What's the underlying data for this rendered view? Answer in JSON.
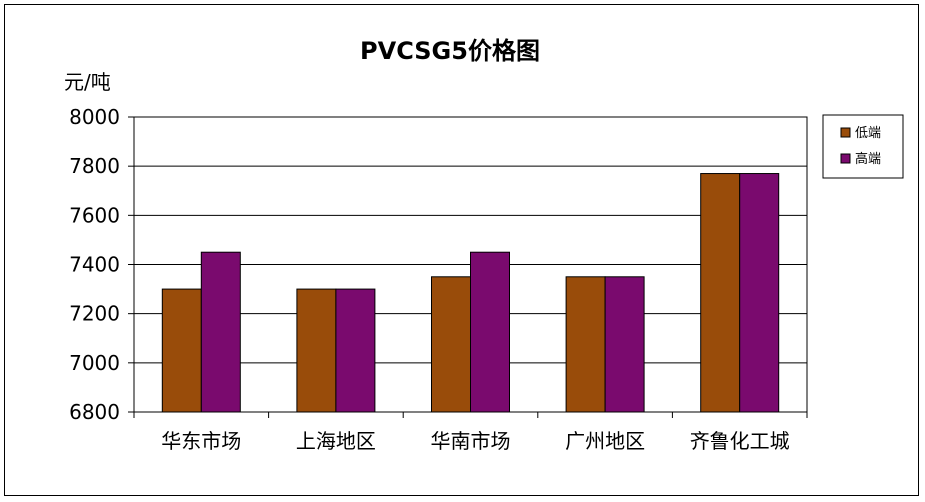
{
  "chart_data": {
    "type": "bar",
    "title": "PVCSG5价格图",
    "ylabel": "元/吨",
    "xlabel": "",
    "categories": [
      "华东市场",
      "上海地区",
      "华南市场",
      "广州地区",
      "齐鲁化工城"
    ],
    "series": [
      {
        "name": "低端",
        "color": "#994C0A",
        "values": [
          7300,
          7300,
          7350,
          7350,
          7770
        ]
      },
      {
        "name": "高端",
        "color": "#7A0A6E",
        "values": [
          7450,
          7300,
          7450,
          7350,
          7770
        ]
      }
    ],
    "ylim": [
      6800,
      8000
    ],
    "yticks": [
      "6800",
      "7000",
      "7200",
      "7400",
      "7600",
      "7800",
      "8000"
    ],
    "grid": true,
    "legend_position": "right"
  }
}
